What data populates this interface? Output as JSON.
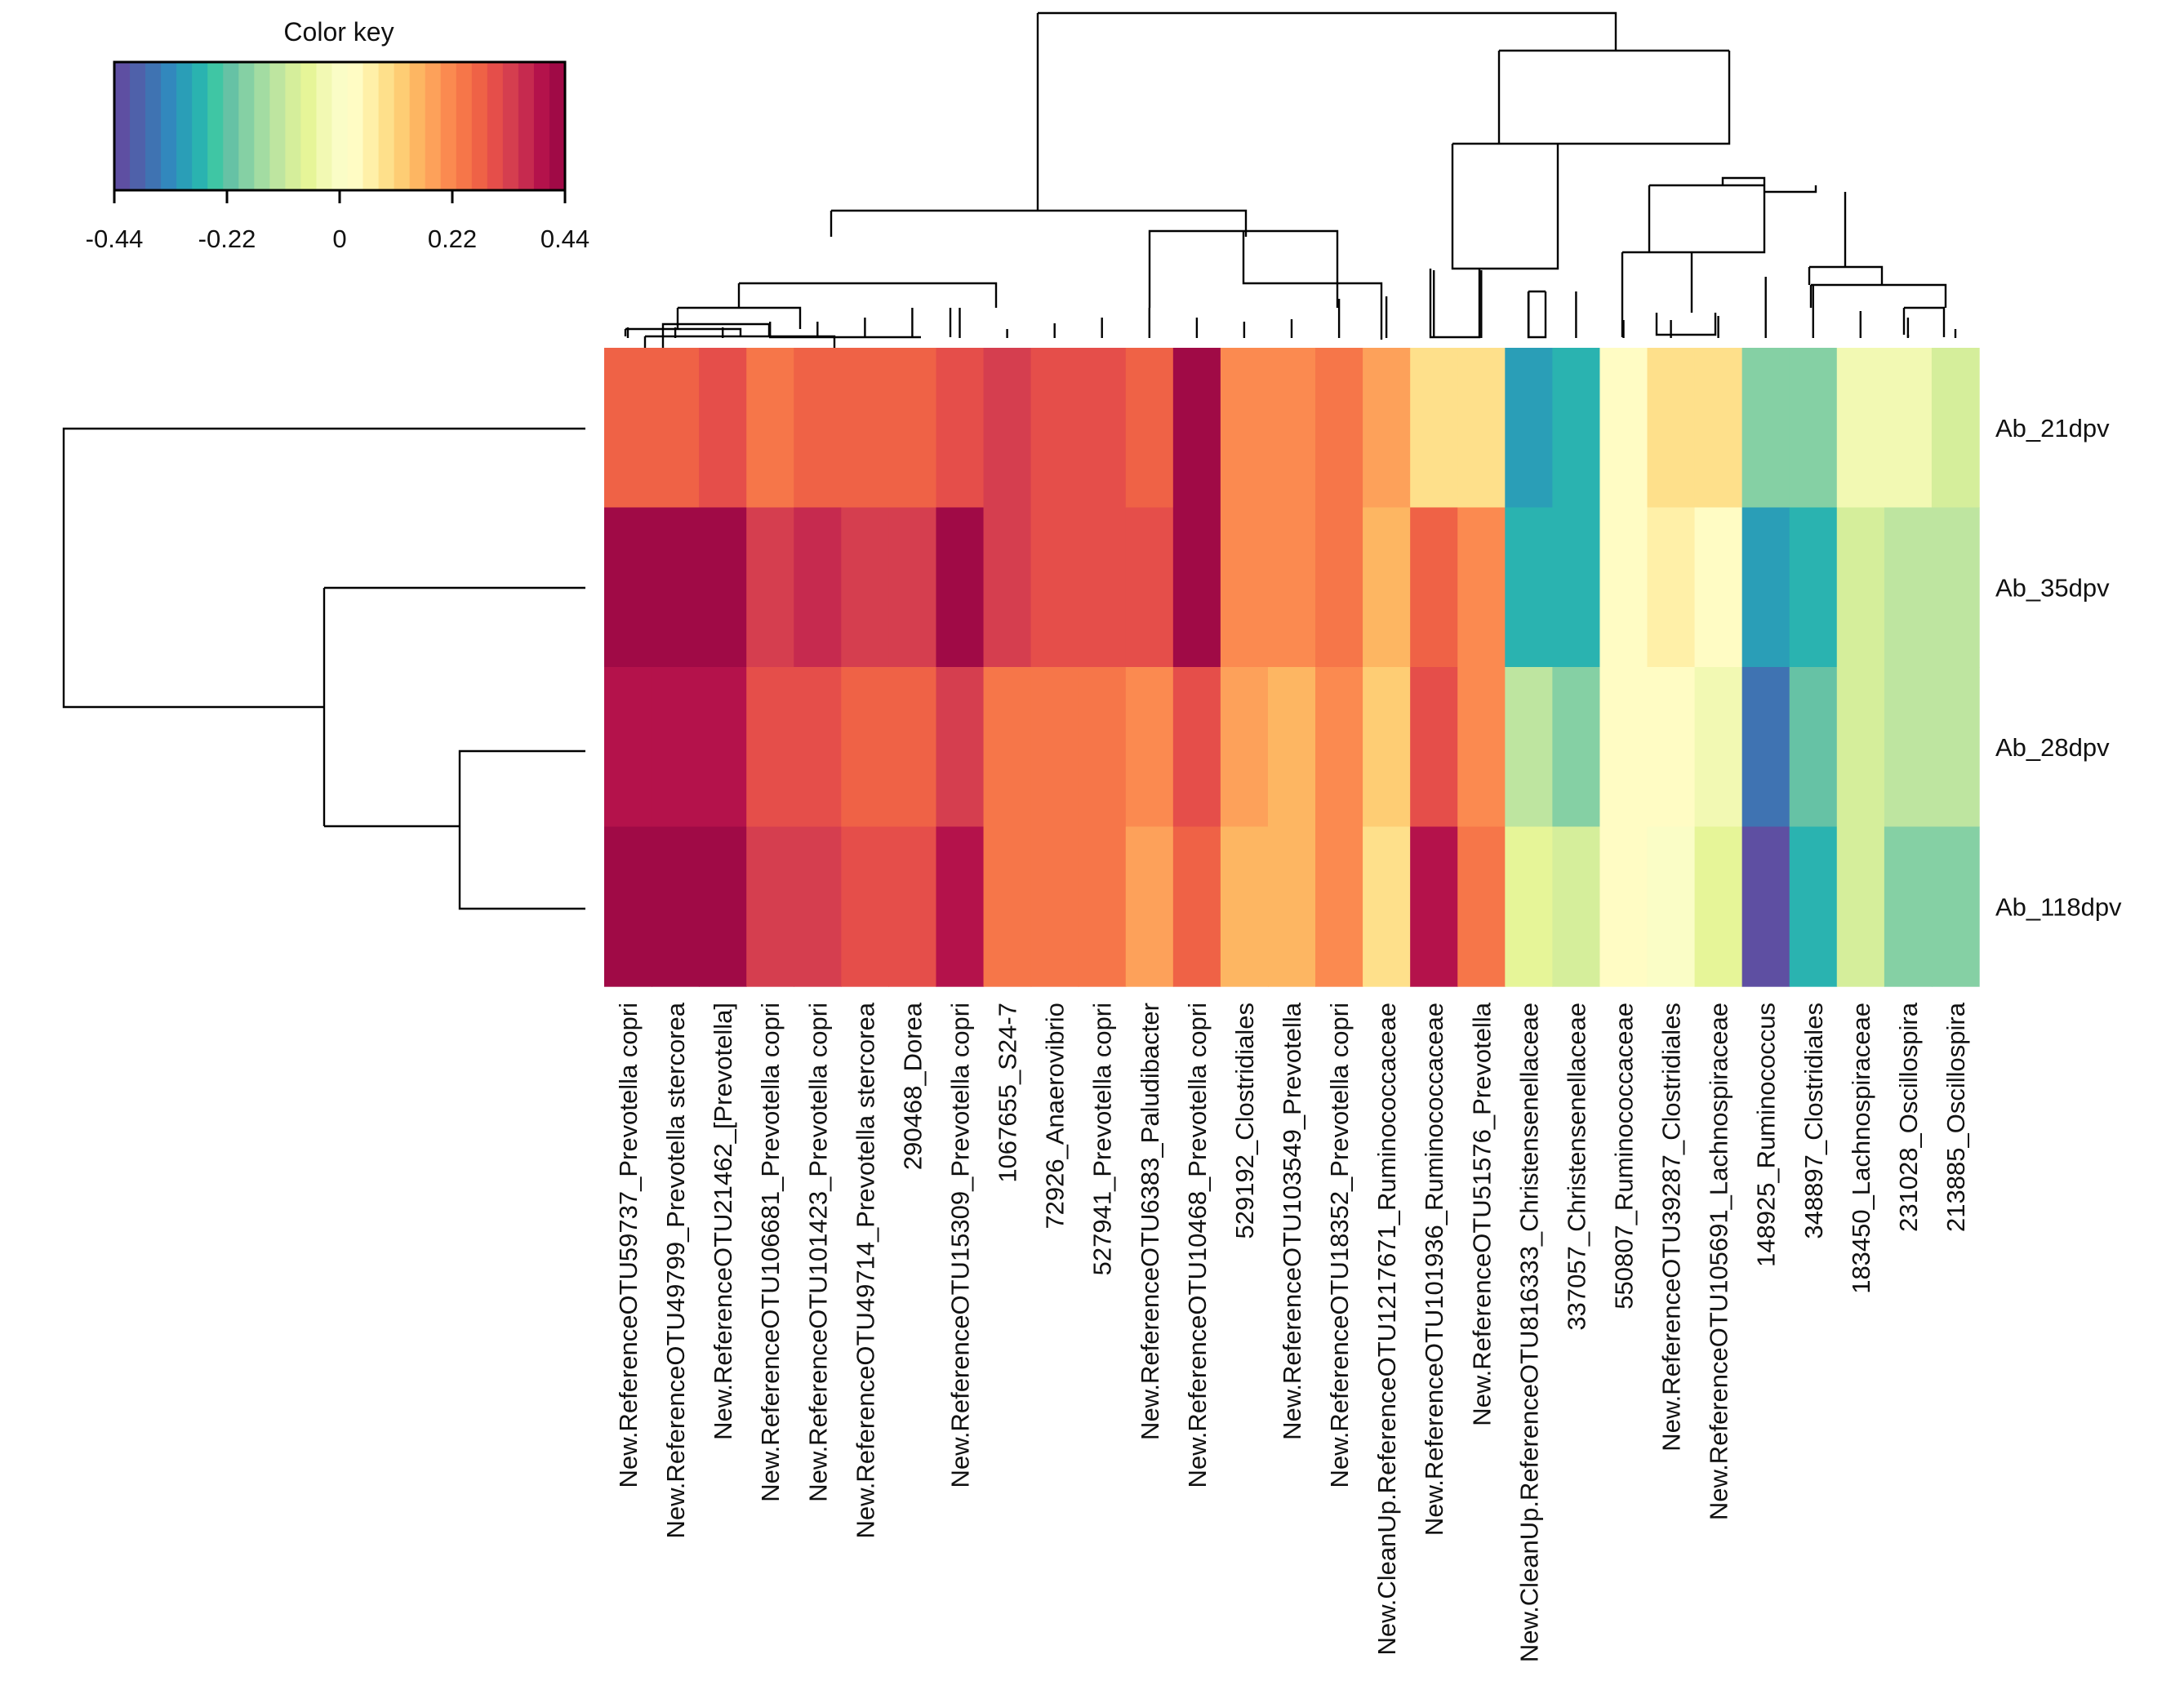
{
  "chart_data": {
    "type": "heatmap",
    "color_key": {
      "title": "Color key",
      "min": -0.44,
      "max": 0.44,
      "ticks": [
        -0.44,
        -0.22,
        0,
        0.22,
        0.44
      ],
      "tick_labels": [
        "-0.44",
        "-0.22",
        "0",
        "0.22",
        "0.44"
      ],
      "palette": [
        "#5e4fa2",
        "#4f61aa",
        "#3f73b2",
        "#3288bd",
        "#2a9eb7",
        "#2ab3b0",
        "#3fc6a4",
        "#66c2a5",
        "#85d0a4",
        "#a3dca2",
        "#bee5a0",
        "#d5ee9b",
        "#e6f598",
        "#f2f9b3",
        "#fafdc6",
        "#fffcc4",
        "#fff0a8",
        "#fee08b",
        "#fecd74",
        "#fdb662",
        "#fda15a",
        "#fb8a50",
        "#f67649",
        "#ef6246",
        "#e54e4a",
        "#d53e4f",
        "#c62a4f",
        "#b4124b",
        "#a00a46"
      ]
    },
    "rows": [
      "Ab_21dpv",
      "Ab_35dpv",
      "Ab_28dpv",
      "Ab_118dpv"
    ],
    "columns": [
      "New.ReferenceOTU59737_Prevotella copri",
      "New.ReferenceOTU49799_Prevotella stercorea",
      "New.ReferenceOTU21462_[Prevotella]",
      "New.ReferenceOTU106681_Prevotella copri",
      "New.ReferenceOTU101423_Prevotella copri",
      "New.ReferenceOTU49714_Prevotella stercorea",
      "290468_Dorea",
      "New.ReferenceOTU15309_Prevotella copri",
      "1067655_S24-7",
      "72926_Anaerovibrio",
      "527941_Prevotella copri",
      "New.ReferenceOTU6383_Paludibacter",
      "New.ReferenceOTU10468_Prevotella copri",
      "529192_Clostridiales",
      "New.ReferenceOTU103549_Prevotella",
      "New.ReferenceOTU18352_Prevotella copri",
      "New.CleanUp.ReferenceOTU1217671_Ruminococcaceae",
      "New.ReferenceOTU101936_Ruminococcaceae",
      "New.ReferenceOTU51576_Prevotella",
      "New.CleanUp.ReferenceOTU816333_Christensenellaceae",
      "337057_Christensenellaceae",
      "550807_Ruminococcaceae",
      "New.ReferenceOTU39287_Clostridiales",
      "New.ReferenceOTU105691_Lachnospiraceae",
      "148925_Ruminococcus",
      "348897_Clostridiales",
      "183450_Lachnospiraceae",
      "231028_Oscillospira",
      "213885_Oscillospira"
    ],
    "values": [
      [
        0.27,
        0.27,
        0.3,
        0.25,
        0.27,
        0.27,
        0.27,
        0.29,
        0.33,
        0.3,
        0.3,
        0.28,
        0.44,
        0.22,
        0.22,
        0.24,
        0.18,
        0.1,
        0.1,
        -0.31,
        -0.26,
        0.02,
        0.08,
        0.08,
        -0.17,
        -0.17,
        -0.02,
        -0.02,
        -0.09
      ],
      [
        0.44,
        0.44,
        0.44,
        0.34,
        0.37,
        0.33,
        0.33,
        0.44,
        0.32,
        0.3,
        0.3,
        0.29,
        0.44,
        0.22,
        0.22,
        0.25,
        0.16,
        0.27,
        0.22,
        -0.26,
        -0.26,
        0.02,
        0.05,
        0.03,
        -0.31,
        -0.26,
        -0.09,
        -0.12,
        -0.12
      ],
      [
        0.38,
        0.38,
        0.38,
        0.3,
        0.3,
        0.28,
        0.28,
        0.34,
        0.24,
        0.24,
        0.24,
        0.21,
        0.31,
        0.18,
        0.16,
        0.2,
        0.13,
        0.31,
        0.22,
        -0.12,
        -0.18,
        0.02,
        0.02,
        -0.04,
        -0.35,
        -0.22,
        -0.09,
        -0.12,
        -0.12
      ],
      [
        0.44,
        0.44,
        0.44,
        0.34,
        0.34,
        0.31,
        0.31,
        0.4,
        0.24,
        0.24,
        0.24,
        0.18,
        0.27,
        0.15,
        0.15,
        0.2,
        0.09,
        0.4,
        0.24,
        -0.07,
        -0.1,
        0.02,
        0.01,
        -0.07,
        -0.44,
        -0.26,
        -0.09,
        -0.17,
        -0.17
      ]
    ]
  }
}
